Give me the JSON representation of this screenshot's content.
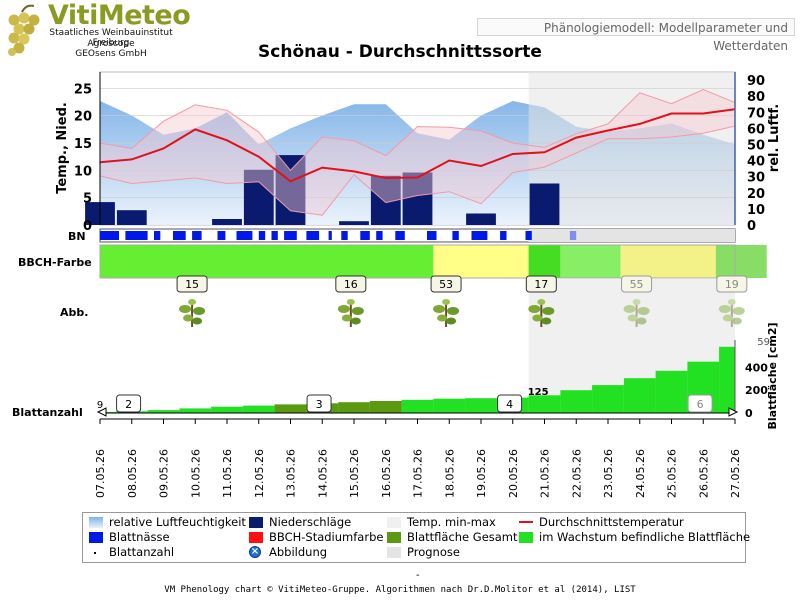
{
  "header": {
    "brand": "VitiMeteo",
    "org_lines": [
      "Staatliches Weinbauinstitut Freiburg",
      "Agroscope",
      "GEOsens GmbH"
    ],
    "top_link": "Phänologiemodell: Modellparameter und Wetterdaten"
  },
  "chart_data": {
    "type": "line",
    "title": "Schönau - Durchschnittssorte",
    "x": [
      "07.05.26",
      "08.05.26",
      "09.05.26",
      "10.05.26",
      "11.05.26",
      "12.05.26",
      "13.05.26",
      "14.05.26",
      "15.05.26",
      "16.05.26",
      "17.05.26",
      "18.05.26",
      "19.05.26",
      "20.05.26",
      "21.05.26",
      "22.05.26",
      "23.05.26",
      "24.05.26",
      "25.05.26",
      "26.05.26",
      "27.05.26"
    ],
    "forecast_from": "21.05.26",
    "ylabel_left": "Temp., Nied.",
    "ylabel_right": "rel. Luftf.",
    "ylim_left": [
      0,
      28
    ],
    "ylim_right": [
      0,
      95
    ],
    "left_ticks": [
      0,
      5,
      10,
      15,
      20,
      25
    ],
    "right_ticks": [
      0,
      10,
      20,
      30,
      40,
      50,
      60,
      70,
      80,
      90
    ],
    "series": [
      {
        "name": "relative Luftfeuchtigkeit",
        "axis": "right",
        "values": [
          77,
          68,
          56,
          60,
          70,
          50,
          60,
          68,
          75,
          75,
          57,
          53,
          68,
          77,
          73,
          61,
          58,
          60,
          63,
          56,
          50
        ]
      },
      {
        "name": "Niederschläge",
        "axis": "left",
        "values": [
          4.2,
          2.7,
          0,
          0,
          1.1,
          10.1,
          12.8,
          0,
          0.7,
          9,
          9.6,
          0,
          2.1,
          0,
          7.6,
          0,
          0,
          0,
          0,
          0,
          0
        ]
      },
      {
        "name": "Temp. min",
        "axis": "left",
        "values": [
          9,
          7.6,
          8.1,
          8.6,
          7.6,
          7.9,
          2.6,
          1.8,
          9.2,
          4.1,
          5.4,
          6.1,
          3.9,
          9.6,
          10.6,
          13.2,
          15.8,
          15.8,
          16.1,
          16.8,
          18.1
        ]
      },
      {
        "name": "Temp. max",
        "axis": "left",
        "values": [
          15,
          14,
          19,
          22,
          21,
          17,
          10,
          16.1,
          15.4,
          12.7,
          18,
          17.9,
          17.2,
          15,
          14.2,
          16.7,
          18.5,
          24.2,
          22.2,
          24.8,
          22.4
        ]
      },
      {
        "name": "Durchschnittstemperatur",
        "axis": "left",
        "values": [
          11.5,
          12,
          14,
          17.5,
          15.5,
          12.5,
          8,
          10.5,
          9.8,
          8.6,
          8.7,
          11.8,
          10.8,
          13,
          13.3,
          16,
          17.3,
          18.5,
          20.4,
          20.4,
          21.2
        ]
      }
    ],
    "bn": {
      "label": "BN",
      "hours_blattnaesse": [
        [
          0,
          0.6
        ],
        [
          0.8,
          1.5
        ],
        [
          1.7,
          1.9
        ],
        [
          2.3,
          2.7
        ],
        [
          2.9,
          3.2
        ],
        [
          3.7,
          3.95
        ],
        [
          4.3,
          4.8
        ],
        [
          5,
          5.2
        ],
        [
          5.4,
          5.6
        ],
        [
          5.8,
          6.2
        ],
        [
          6.5,
          6.9
        ],
        [
          7.2,
          7.3
        ],
        [
          7.6,
          7.8
        ],
        [
          8.2,
          8.5
        ],
        [
          8.7,
          8.9
        ],
        [
          9.3,
          9.6
        ],
        [
          10.3,
          10.6
        ],
        [
          11.1,
          11.3
        ],
        [
          11.7,
          12.2
        ],
        [
          12.6,
          12.8
        ],
        [
          13.4,
          13.6
        ]
      ],
      "forecast_mark": [
        14.8,
        15.0
      ]
    },
    "bbch_farbe": {
      "label": "BBCH-Farbe",
      "segments": [
        {
          "from": 0,
          "to": 10.5,
          "color": "#66ee33"
        },
        {
          "from": 10.5,
          "to": 13.5,
          "color": "#ffff88"
        },
        {
          "from": 13.5,
          "to": 14.5,
          "color": "#44dd22"
        },
        {
          "from": 14.5,
          "to": 16.4,
          "color": "#88ee66"
        },
        {
          "from": 16.4,
          "to": 19.4,
          "color": "#f2f288"
        },
        {
          "from": 19.4,
          "to": 21,
          "color": "#88dd66"
        }
      ]
    },
    "abbildung": {
      "label": "Abb.",
      "stages": [
        {
          "code": "15",
          "at": 2.9,
          "forecast": false
        },
        {
          "code": "16",
          "at": 7.9,
          "forecast": false
        },
        {
          "code": "53",
          "at": 10.9,
          "forecast": false
        },
        {
          "code": "17",
          "at": 13.9,
          "forecast": false
        },
        {
          "code": "55",
          "at": 16.9,
          "forecast": true
        },
        {
          "code": "19",
          "at": 19.9,
          "forecast": true
        }
      ]
    },
    "blattanzahl": {
      "label": "Blattanzahl",
      "ylabel_right": "Blattfläche [cm2]",
      "right_ticks": [
        0,
        200,
        400
      ],
      "ylim": [
        0,
        640
      ],
      "leaf_counts": [
        {
          "value": "2",
          "at": 0.9,
          "forecast": false
        },
        {
          "value": "3",
          "at": 6.9,
          "forecast": false
        },
        {
          "value": "4",
          "at": 12.9,
          "forecast": false
        },
        {
          "value": "6",
          "at": 18.9,
          "forecast": true
        }
      ],
      "partial_labels": [
        {
          "value": "9",
          "at": 0.0
        },
        {
          "value": "125",
          "at": 13.8
        },
        {
          "value": "59",
          "at": 20.9
        }
      ],
      "leaf_area_total": [
        10,
        15,
        25,
        40,
        55,
        65,
        75,
        85,
        95,
        105,
        115,
        125,
        130,
        135,
        155,
        200,
        245,
        305,
        370,
        450,
        580
      ],
      "leaf_area_growing": [
        10,
        15,
        25,
        40,
        55,
        65,
        75,
        85,
        95,
        105,
        115,
        125,
        130,
        135,
        155,
        200,
        245,
        305,
        370,
        450,
        580
      ]
    }
  },
  "legend": {
    "items": [
      {
        "name": "relative Luftfeuchtigkeit",
        "icon": "gradient-swatch"
      },
      {
        "name": "Niederschläge",
        "icon": "navy-swatch"
      },
      {
        "name": "Temp. min-max",
        "icon": "pale-swatch"
      },
      {
        "name": "Durchschnittstemperatur",
        "icon": "red-line"
      },
      {
        "name": "Blattnässe",
        "icon": "blue-swatch"
      },
      {
        "name": "BBCH-Stadiumfarbe",
        "icon": "red-swatch"
      },
      {
        "name": "Blattfläche Gesamt",
        "icon": "olive-swatch"
      },
      {
        "name": "im Wachstum befindliche Blattfläche",
        "icon": "green-swatch"
      },
      {
        "name": "Blattanzahl",
        "icon": "dot"
      },
      {
        "name": "Abbildung",
        "icon": "image-icon"
      },
      {
        "name": "Prognose",
        "icon": "grey-swatch"
      }
    ]
  },
  "footer": {
    "dash": "-",
    "text": "VM Phenology chart © VitiMeteo-Gruppe. Algorithmen nach Dr.D.Molitor et al (2014), LIST"
  },
  "colors": {
    "humidity": "#7fb2e8",
    "rain": "#0a1a6e",
    "temp_band": "#f7c8d0",
    "temp_line": "#e2101a",
    "bn": "#0018e8",
    "forecast_shade": "#e4e4e4",
    "leaf_green": "#22e022",
    "leaf_olive": "#5a9a10"
  }
}
